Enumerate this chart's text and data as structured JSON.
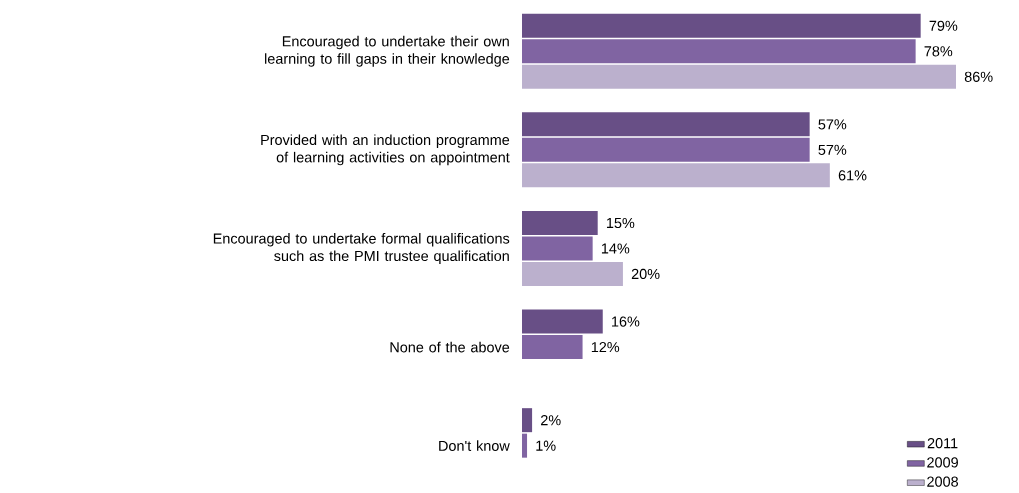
{
  "chart_data": {
    "type": "bar",
    "orientation": "horizontal",
    "legend": "bottom right",
    "categories": [
      "Encouraged to undertake their own learning to fill gaps in their knowledge",
      "Provided with an induction programme of learning activities on appointment",
      "Encouraged to undertake formal qualifications such as the PMI trustee qualification",
      "None of the above",
      "Don't know"
    ],
    "series": [
      {
        "name": "2011",
        "color": "#684f86",
        "values": [
          79,
          57,
          15,
          16,
          2
        ],
        "value_labels": [
          "79%",
          "57%",
          "15%",
          "16%",
          "2%"
        ]
      },
      {
        "name": "2009",
        "color": "#8064a2",
        "values": [
          78,
          57,
          14,
          12,
          1
        ],
        "value_labels": [
          "78%",
          "57%",
          "14%",
          "12%",
          "1%"
        ]
      },
      {
        "name": "2008",
        "color": "#bbb0cd",
        "values": [
          86,
          61,
          20,
          null,
          null
        ],
        "value_labels": [
          "86%",
          "61%",
          "20%",
          null,
          null
        ]
      }
    ]
  }
}
